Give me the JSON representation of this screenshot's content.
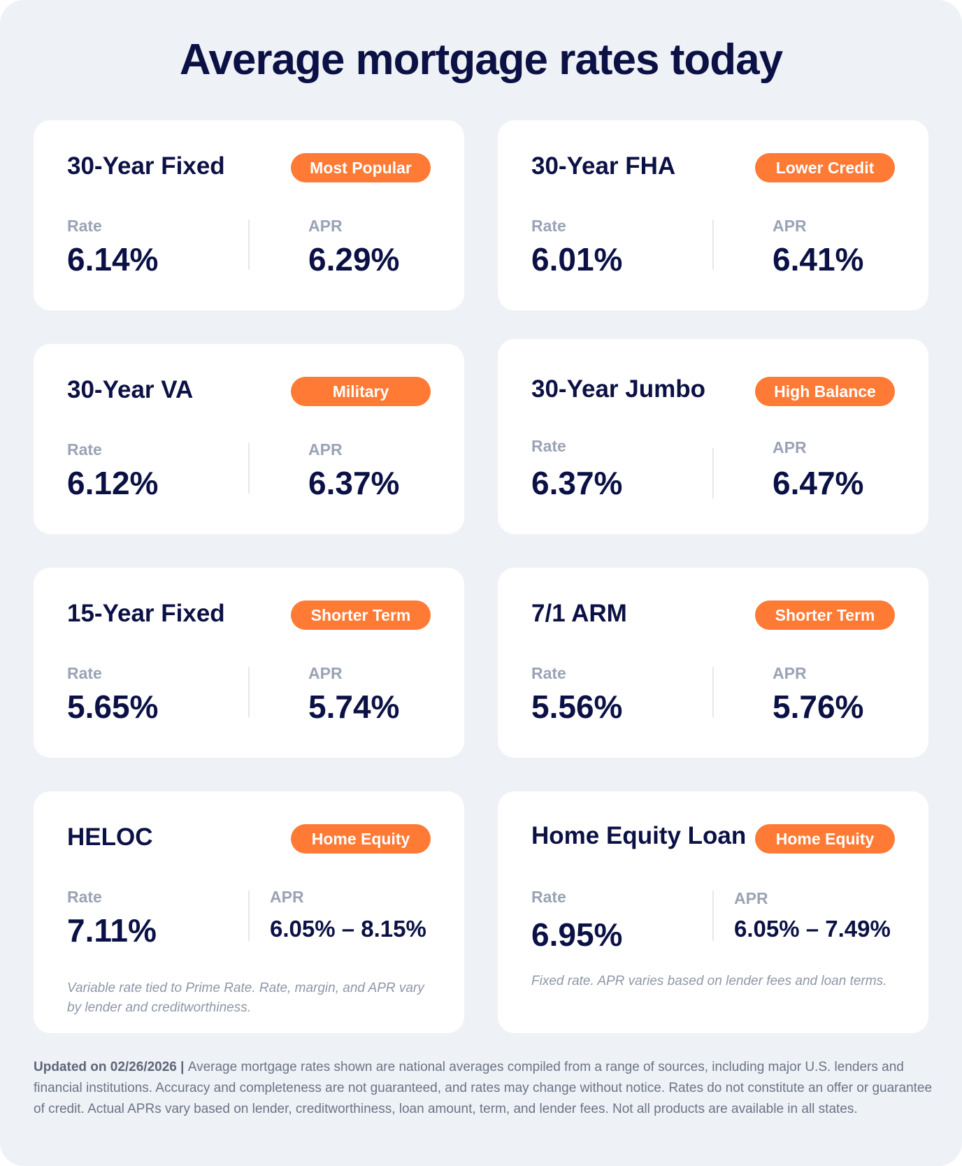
{
  "title": "Average mortgage rates today",
  "labels": {
    "rate": "Rate",
    "apr": "APR"
  },
  "cards": [
    {
      "name": "30-Year Fixed",
      "badge": "Most Popular",
      "rate": "6.14%",
      "apr": "6.29%"
    },
    {
      "name": "30-Year FHA",
      "badge": "Lower Credit",
      "rate": "6.01%",
      "apr": "6.41%"
    },
    {
      "name": "30-Year VA",
      "badge": "Military",
      "rate": "6.12%",
      "apr": "6.37%"
    },
    {
      "name": "30-Year Jumbo",
      "badge": "High Balance",
      "rate": "6.37%",
      "apr": "6.47%"
    },
    {
      "name": "15-Year Fixed",
      "badge": "Shorter Term",
      "rate": "5.65%",
      "apr": "5.74%"
    },
    {
      "name": "7/1 ARM",
      "badge": "Shorter Term",
      "rate": "5.56%",
      "apr": "5.76%"
    },
    {
      "name": "HELOC",
      "badge": "Home Equity",
      "rate": "7.11%",
      "apr": "6.05% – 8.15%",
      "note": "Variable rate tied to Prime Rate. Rate, margin, and APR vary by lender and creditworthiness."
    },
    {
      "name": "Home Equity Loan",
      "badge": "Home Equity",
      "rate": "6.95%",
      "apr": "6.05% – 7.49%",
      "note": "Fixed rate. APR varies based on lender fees and loan terms."
    }
  ],
  "footer": {
    "updated": "Updated on 02/26/2026",
    "separator": " | ",
    "disclaimer": "Average mortgage rates shown are national averages compiled from a range of sources, including major U.S. lenders and financial institutions. Accuracy and completeness are not guaranteed, and rates may change without notice. Rates do not constitute an offer or guarantee of credit. Actual APRs vary based on lender, creditworthiness, loan amount, term, and lender fees. Not all products are available in all states."
  },
  "colors": {
    "background": "#eef1f6",
    "card": "#ffffff",
    "badge": "#ff7a35",
    "heading": "#0c1145",
    "label": "#9aa3b5"
  }
}
